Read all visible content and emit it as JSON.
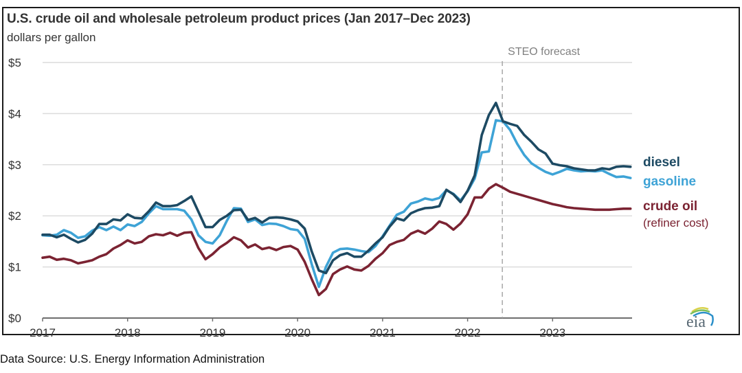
{
  "title": "U.S. crude oil and wholesale petroleum product prices (Jan 2017–Dec 2023)",
  "subtitle": "dollars per gallon",
  "source": "Data Source: U.S. Energy Information Administration",
  "logo_text": "eia",
  "chart_data": {
    "type": "line",
    "title": "U.S. crude oil and wholesale petroleum product prices (Jan 2017–Dec 2023)",
    "ylabel": "dollars per gallon",
    "xlabel": "",
    "ylim": [
      0,
      5
    ],
    "xlim": [
      "2017-01",
      "2023-12"
    ],
    "grid": true,
    "y_ticks": [
      0,
      1,
      2,
      3,
      4,
      5
    ],
    "y_tick_labels": [
      "$0",
      "$1",
      "$2",
      "$3",
      "$4",
      "$5"
    ],
    "x_tick_labels": [
      "2017",
      "2018",
      "2019",
      "2020",
      "2021",
      "2022",
      "2023"
    ],
    "x_start": "2017-01",
    "frequency": "monthly",
    "forecast": {
      "label": "STEO forecast",
      "start": "2022-06"
    },
    "legend_placement": "right",
    "series": [
      {
        "name": "diesel",
        "color": "#1d4a63",
        "values": [
          1.63,
          1.63,
          1.58,
          1.63,
          1.55,
          1.48,
          1.53,
          1.65,
          1.84,
          1.84,
          1.93,
          1.91,
          2.03,
          1.96,
          1.95,
          2.09,
          2.26,
          2.19,
          2.19,
          2.21,
          2.29,
          2.38,
          2.08,
          1.78,
          1.78,
          1.92,
          2.0,
          2.11,
          2.12,
          1.92,
          1.96,
          1.87,
          1.96,
          1.97,
          1.96,
          1.93,
          1.89,
          1.75,
          1.3,
          0.93,
          0.88,
          1.13,
          1.23,
          1.27,
          1.2,
          1.2,
          1.32,
          1.46,
          1.58,
          1.79,
          1.95,
          1.91,
          2.05,
          2.11,
          2.15,
          2.16,
          2.19,
          2.51,
          2.42,
          2.27,
          2.49,
          2.79,
          3.58,
          3.97,
          4.21,
          3.85,
          3.8,
          3.76,
          3.58,
          3.45,
          3.3,
          3.22,
          3.02,
          2.99,
          2.97,
          2.93,
          2.91,
          2.89,
          2.89,
          2.93,
          2.91,
          2.96,
          2.97,
          2.96
        ]
      },
      {
        "name": "gasoline",
        "color": "#3ea3d6",
        "values": [
          1.62,
          1.61,
          1.63,
          1.72,
          1.67,
          1.57,
          1.6,
          1.71,
          1.78,
          1.72,
          1.79,
          1.72,
          1.83,
          1.8,
          1.88,
          2.05,
          2.19,
          2.13,
          2.13,
          2.13,
          2.1,
          1.93,
          1.62,
          1.49,
          1.46,
          1.62,
          1.9,
          2.15,
          2.14,
          1.88,
          1.93,
          1.82,
          1.85,
          1.84,
          1.8,
          1.74,
          1.72,
          1.55,
          1.05,
          0.61,
          1.0,
          1.28,
          1.35,
          1.36,
          1.34,
          1.31,
          1.29,
          1.41,
          1.6,
          1.81,
          2.02,
          2.08,
          2.24,
          2.28,
          2.34,
          2.31,
          2.35,
          2.5,
          2.43,
          2.3,
          2.48,
          2.73,
          3.24,
          3.26,
          3.87,
          3.85,
          3.68,
          3.41,
          3.19,
          3.03,
          2.94,
          2.86,
          2.81,
          2.86,
          2.92,
          2.89,
          2.87,
          2.88,
          2.87,
          2.89,
          2.82,
          2.76,
          2.77,
          2.74
        ]
      },
      {
        "name": "crude oil",
        "note": "(refiner cost)",
        "color": "#7b2332",
        "values": [
          1.18,
          1.2,
          1.14,
          1.16,
          1.13,
          1.07,
          1.1,
          1.13,
          1.2,
          1.25,
          1.36,
          1.43,
          1.52,
          1.46,
          1.49,
          1.6,
          1.64,
          1.62,
          1.67,
          1.61,
          1.67,
          1.68,
          1.37,
          1.15,
          1.25,
          1.38,
          1.47,
          1.58,
          1.52,
          1.38,
          1.44,
          1.35,
          1.38,
          1.33,
          1.39,
          1.41,
          1.34,
          1.1,
          0.76,
          0.45,
          0.57,
          0.86,
          0.95,
          1.01,
          0.95,
          0.93,
          1.02,
          1.16,
          1.27,
          1.43,
          1.49,
          1.53,
          1.65,
          1.71,
          1.65,
          1.75,
          1.89,
          1.84,
          1.73,
          1.85,
          2.03,
          2.36,
          2.36,
          2.53,
          2.62,
          2.55,
          2.47,
          2.43,
          2.39,
          2.35,
          2.31,
          2.27,
          2.23,
          2.2,
          2.17,
          2.15,
          2.14,
          2.13,
          2.12,
          2.12,
          2.12,
          2.13,
          2.14,
          2.14
        ]
      }
    ]
  }
}
